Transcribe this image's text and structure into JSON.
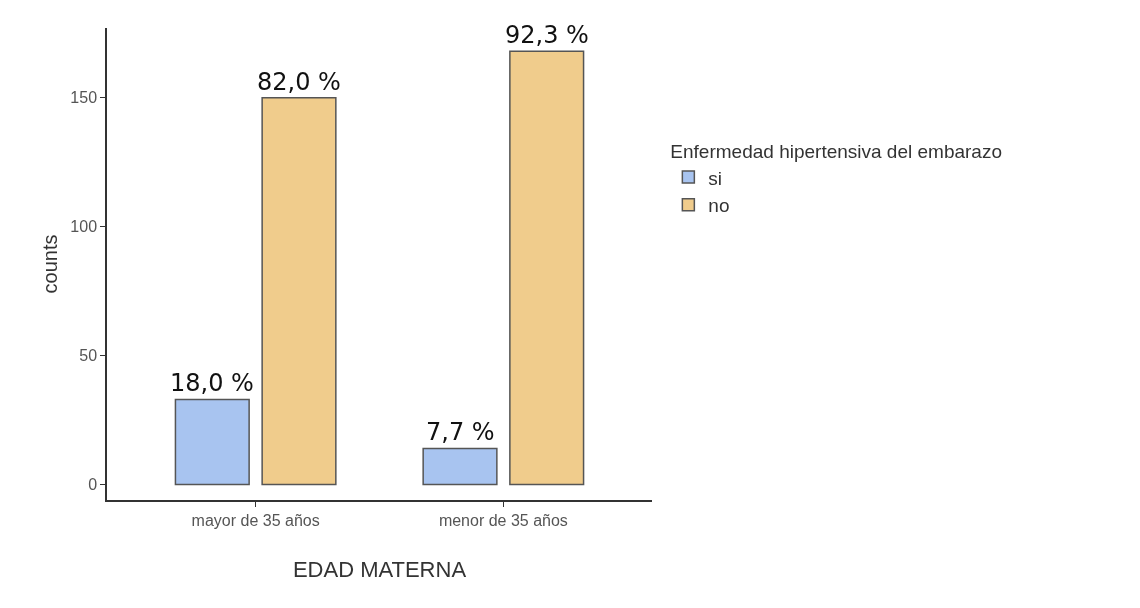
{
  "chart_data": {
    "type": "bar",
    "xlabel": "EDAD MATERNA",
    "ylabel": "counts",
    "legend_title": "Enfermedad hipertensiva del embarazo",
    "categories": [
      "mayor de 35 años",
      "menor de 35 años"
    ],
    "series": [
      {
        "name": "si",
        "color": "#a8c4f0",
        "values": [
          33,
          14
        ]
      },
      {
        "name": "no",
        "color": "#f0cc8c",
        "values": [
          150,
          168
        ]
      }
    ],
    "annotations": [
      "18,0 %",
      "82,0 %",
      "7,7 %",
      "92,3 %"
    ],
    "ylim": [
      -6,
      177
    ],
    "yticks": [
      0,
      50,
      100,
      150
    ],
    "grid": false,
    "legend": "right"
  }
}
